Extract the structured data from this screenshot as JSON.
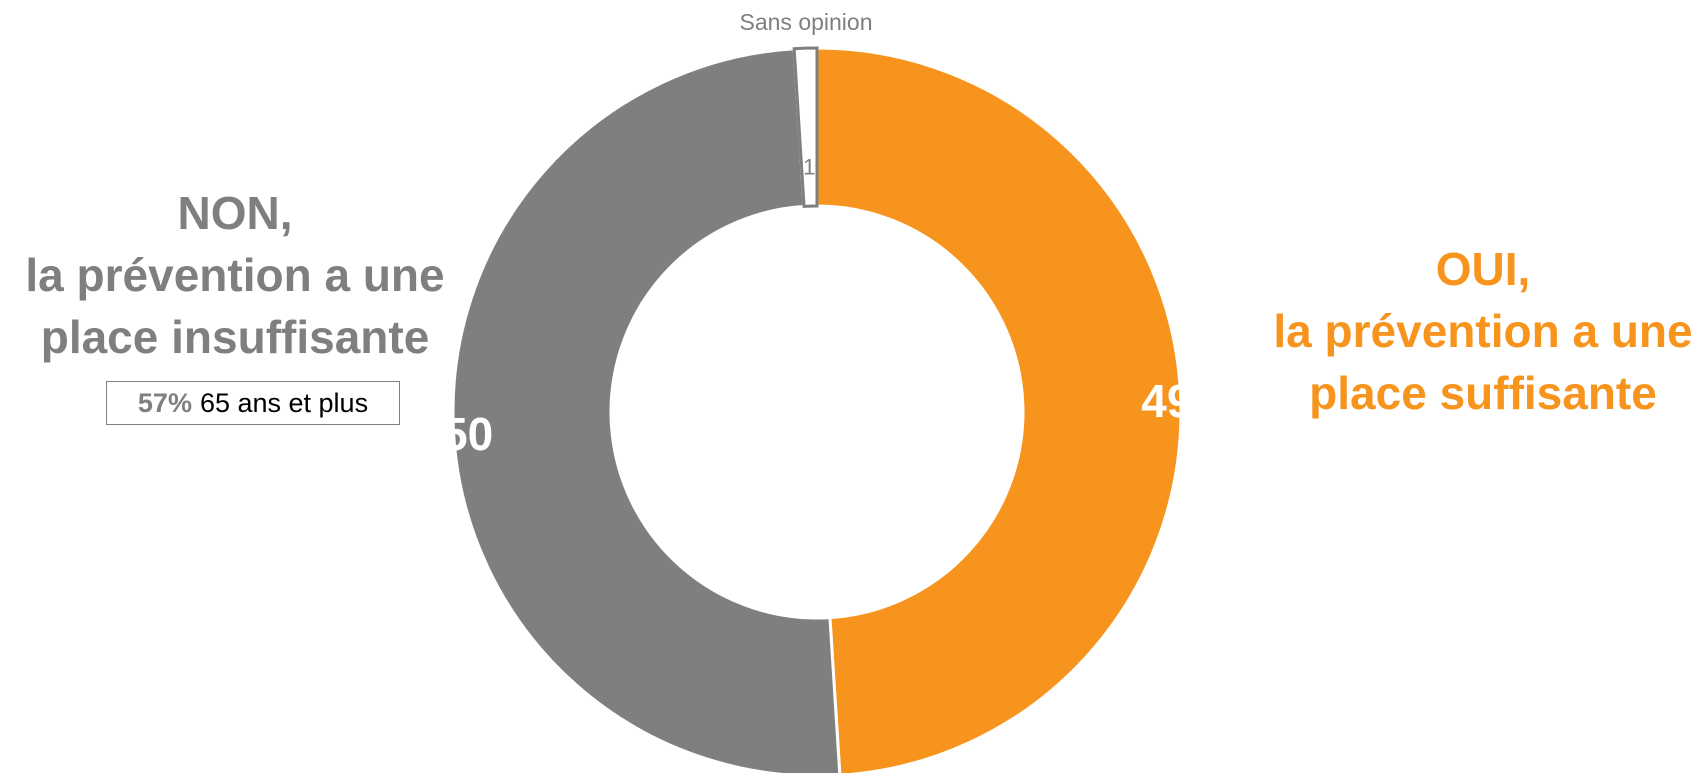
{
  "chart_data": {
    "type": "pie",
    "donut": true,
    "slices": [
      {
        "label": "Oui",
        "value": 49,
        "data_label": "49",
        "color": "#f7941d"
      },
      {
        "label": "Non",
        "value": 50,
        "data_label": "50",
        "color": "#7f7f7f"
      },
      {
        "label": "Sans opinion",
        "value": 1,
        "data_label": "1",
        "color": "#ffffff",
        "stroke": "#7f7f7f"
      }
    ],
    "callout": "Sans opinion"
  },
  "labels": {
    "non": {
      "line1": "NON,",
      "line2": "la prévention a une",
      "line3": "place insuffisante"
    },
    "oui": {
      "line1": "OUI,",
      "line2": "la prévention a une",
      "line3": "place suffisante"
    }
  },
  "stat_box": {
    "pct": "57%",
    "text": "65 ans et plus"
  },
  "colors": {
    "oui": "#f7941d",
    "non": "#7f7f7f",
    "sans_opinion_border": "#7f7f7f"
  }
}
